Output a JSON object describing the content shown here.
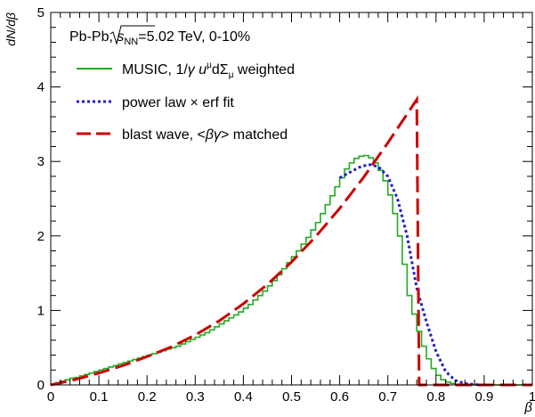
{
  "chart_data": {
    "type": "line",
    "title": "",
    "xlabel": "β",
    "ylabel": "dN/dβ",
    "xlim": [
      0,
      1
    ],
    "ylim": [
      0,
      5
    ],
    "grid": false,
    "legend_position": "top-left",
    "x_ticks": [
      0,
      0.1,
      0.2,
      0.3,
      0.4,
      0.5,
      0.6,
      0.7,
      0.8,
      0.9,
      1
    ],
    "x_tick_labels": [
      "0",
      "0.1",
      "0.2",
      "0.3",
      "0.4",
      "0.5",
      "0.6",
      "0.7",
      "0.8",
      "0.9",
      "1"
    ],
    "y_ticks": [
      0,
      1,
      2,
      3,
      4,
      5
    ],
    "y_tick_labels": [
      "0",
      "1",
      "2",
      "3",
      "4",
      "5"
    ],
    "annotation": {
      "prefix": "Pb-Pb, ",
      "sqrt_s": "s",
      "sqrt_sub": "NN",
      "suffix": "=5.02 TeV, 0-10%"
    },
    "legend": [
      {
        "text_a": "MUSIC, 1/",
        "greek": "γ",
        "text_b": " u",
        "sup": "μ",
        "text_c": "dΣ",
        "sub": "μ",
        "text_d": " weighted"
      },
      {
        "text_a": "power law × erf fit"
      },
      {
        "text_a": "blast wave, <",
        "greek": "βγ",
        "text_b": "> matched"
      }
    ],
    "series": [
      {
        "name": "MUSIC, 1/γ u^μ dΣ_μ weighted",
        "style": "step",
        "color": "#22aa22",
        "bin_width": 0.01,
        "bin_start": 0,
        "values": [
          0.01,
          0.03,
          0.05,
          0.07,
          0.09,
          0.1,
          0.12,
          0.14,
          0.16,
          0.18,
          0.2,
          0.22,
          0.24,
          0.26,
          0.28,
          0.3,
          0.32,
          0.34,
          0.36,
          0.38,
          0.4,
          0.42,
          0.44,
          0.46,
          0.48,
          0.5,
          0.52,
          0.55,
          0.58,
          0.61,
          0.64,
          0.67,
          0.7,
          0.74,
          0.78,
          0.82,
          0.86,
          0.9,
          0.94,
          0.98,
          1.03,
          1.08,
          1.14,
          1.2,
          1.26,
          1.33,
          1.4,
          1.48,
          1.56,
          1.64,
          1.72,
          1.8,
          1.89,
          1.98,
          2.08,
          2.18,
          2.3,
          2.42,
          2.54,
          2.66,
          2.78,
          2.9,
          2.98,
          3.04,
          3.07,
          3.08,
          3.05,
          2.98,
          2.88,
          2.74,
          2.55,
          2.3,
          2.0,
          1.62,
          1.2,
          0.95,
          0.72,
          0.52,
          0.35,
          0.22,
          0.13,
          0.07,
          0.04,
          0.02,
          0.01,
          0,
          0,
          0,
          0,
          0,
          0,
          0,
          0,
          0,
          0,
          0,
          0,
          0,
          0,
          0
        ]
      },
      {
        "name": "power law × erf fit",
        "style": "dotted",
        "color": "#1f1fcc",
        "x": [
          0.6,
          0.62,
          0.64,
          0.66,
          0.68,
          0.7,
          0.72,
          0.74,
          0.76,
          0.78,
          0.8,
          0.82,
          0.84,
          0.86,
          0.88,
          0.9
        ],
        "y": [
          2.78,
          2.85,
          2.92,
          2.96,
          2.93,
          2.8,
          2.5,
          2.0,
          1.3,
          0.85,
          0.45,
          0.18,
          0.06,
          0.02,
          0.005,
          0
        ]
      },
      {
        "name": "blast wave, <βγ> matched",
        "style": "dashed",
        "color": "#cc0000",
        "x": [
          0,
          0.05,
          0.1,
          0.15,
          0.2,
          0.25,
          0.3,
          0.35,
          0.4,
          0.45,
          0.5,
          0.55,
          0.6,
          0.65,
          0.7,
          0.76,
          0.765,
          0.8,
          1.0
        ],
        "y": [
          0,
          0.07,
          0.16,
          0.26,
          0.38,
          0.51,
          0.67,
          0.86,
          1.09,
          1.35,
          1.65,
          1.99,
          2.37,
          2.79,
          3.25,
          3.83,
          0,
          0,
          0
        ]
      }
    ]
  }
}
